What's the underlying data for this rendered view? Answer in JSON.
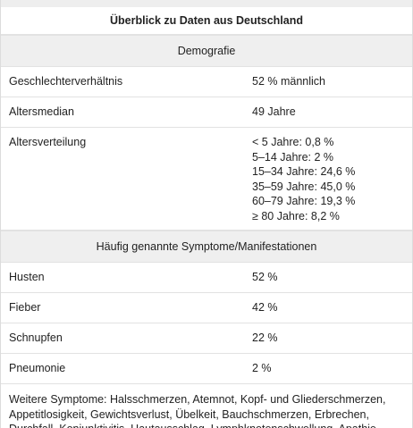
{
  "title": "Überblick zu Daten aus Deutschland",
  "demographics": {
    "header": "Demografie",
    "rows": [
      {
        "label": "Geschlechterverhältnis",
        "value": "52 % männlich"
      },
      {
        "label": "Altersmedian",
        "value": "49 Jahre"
      }
    ],
    "age_distribution": {
      "label": "Altersverteilung",
      "lines": [
        "< 5 Jahre: 0,8 %",
        "5–14 Jahre: 2 %",
        "15–34 Jahre: 24,6 %",
        "35–59 Jahre: 45,0 %",
        "60–79 Jahre: 19,3 %",
        "≥ 80 Jahre: 8,2 %"
      ]
    }
  },
  "symptoms": {
    "header": "Häufig genannte Symptome/Manifestationen",
    "rows": [
      {
        "label": "Husten",
        "value": "52 %"
      },
      {
        "label": "Fieber",
        "value": "42 %"
      },
      {
        "label": "Schnupfen",
        "value": "22 %"
      },
      {
        "label": "Pneumonie",
        "value": "2 %"
      }
    ],
    "other": "Weitere Symptome: Halsschmerzen, Atemnot, Kopf- und Gliederschmerzen, Appetitlosigkeit, Gewichtsverlust, Übelkeit, Bauchschmerzen, Erbrechen, Durchfall, Konjunktivitis, Hautausschlag, Lymphknotenschwellung, Apathie,"
  }
}
